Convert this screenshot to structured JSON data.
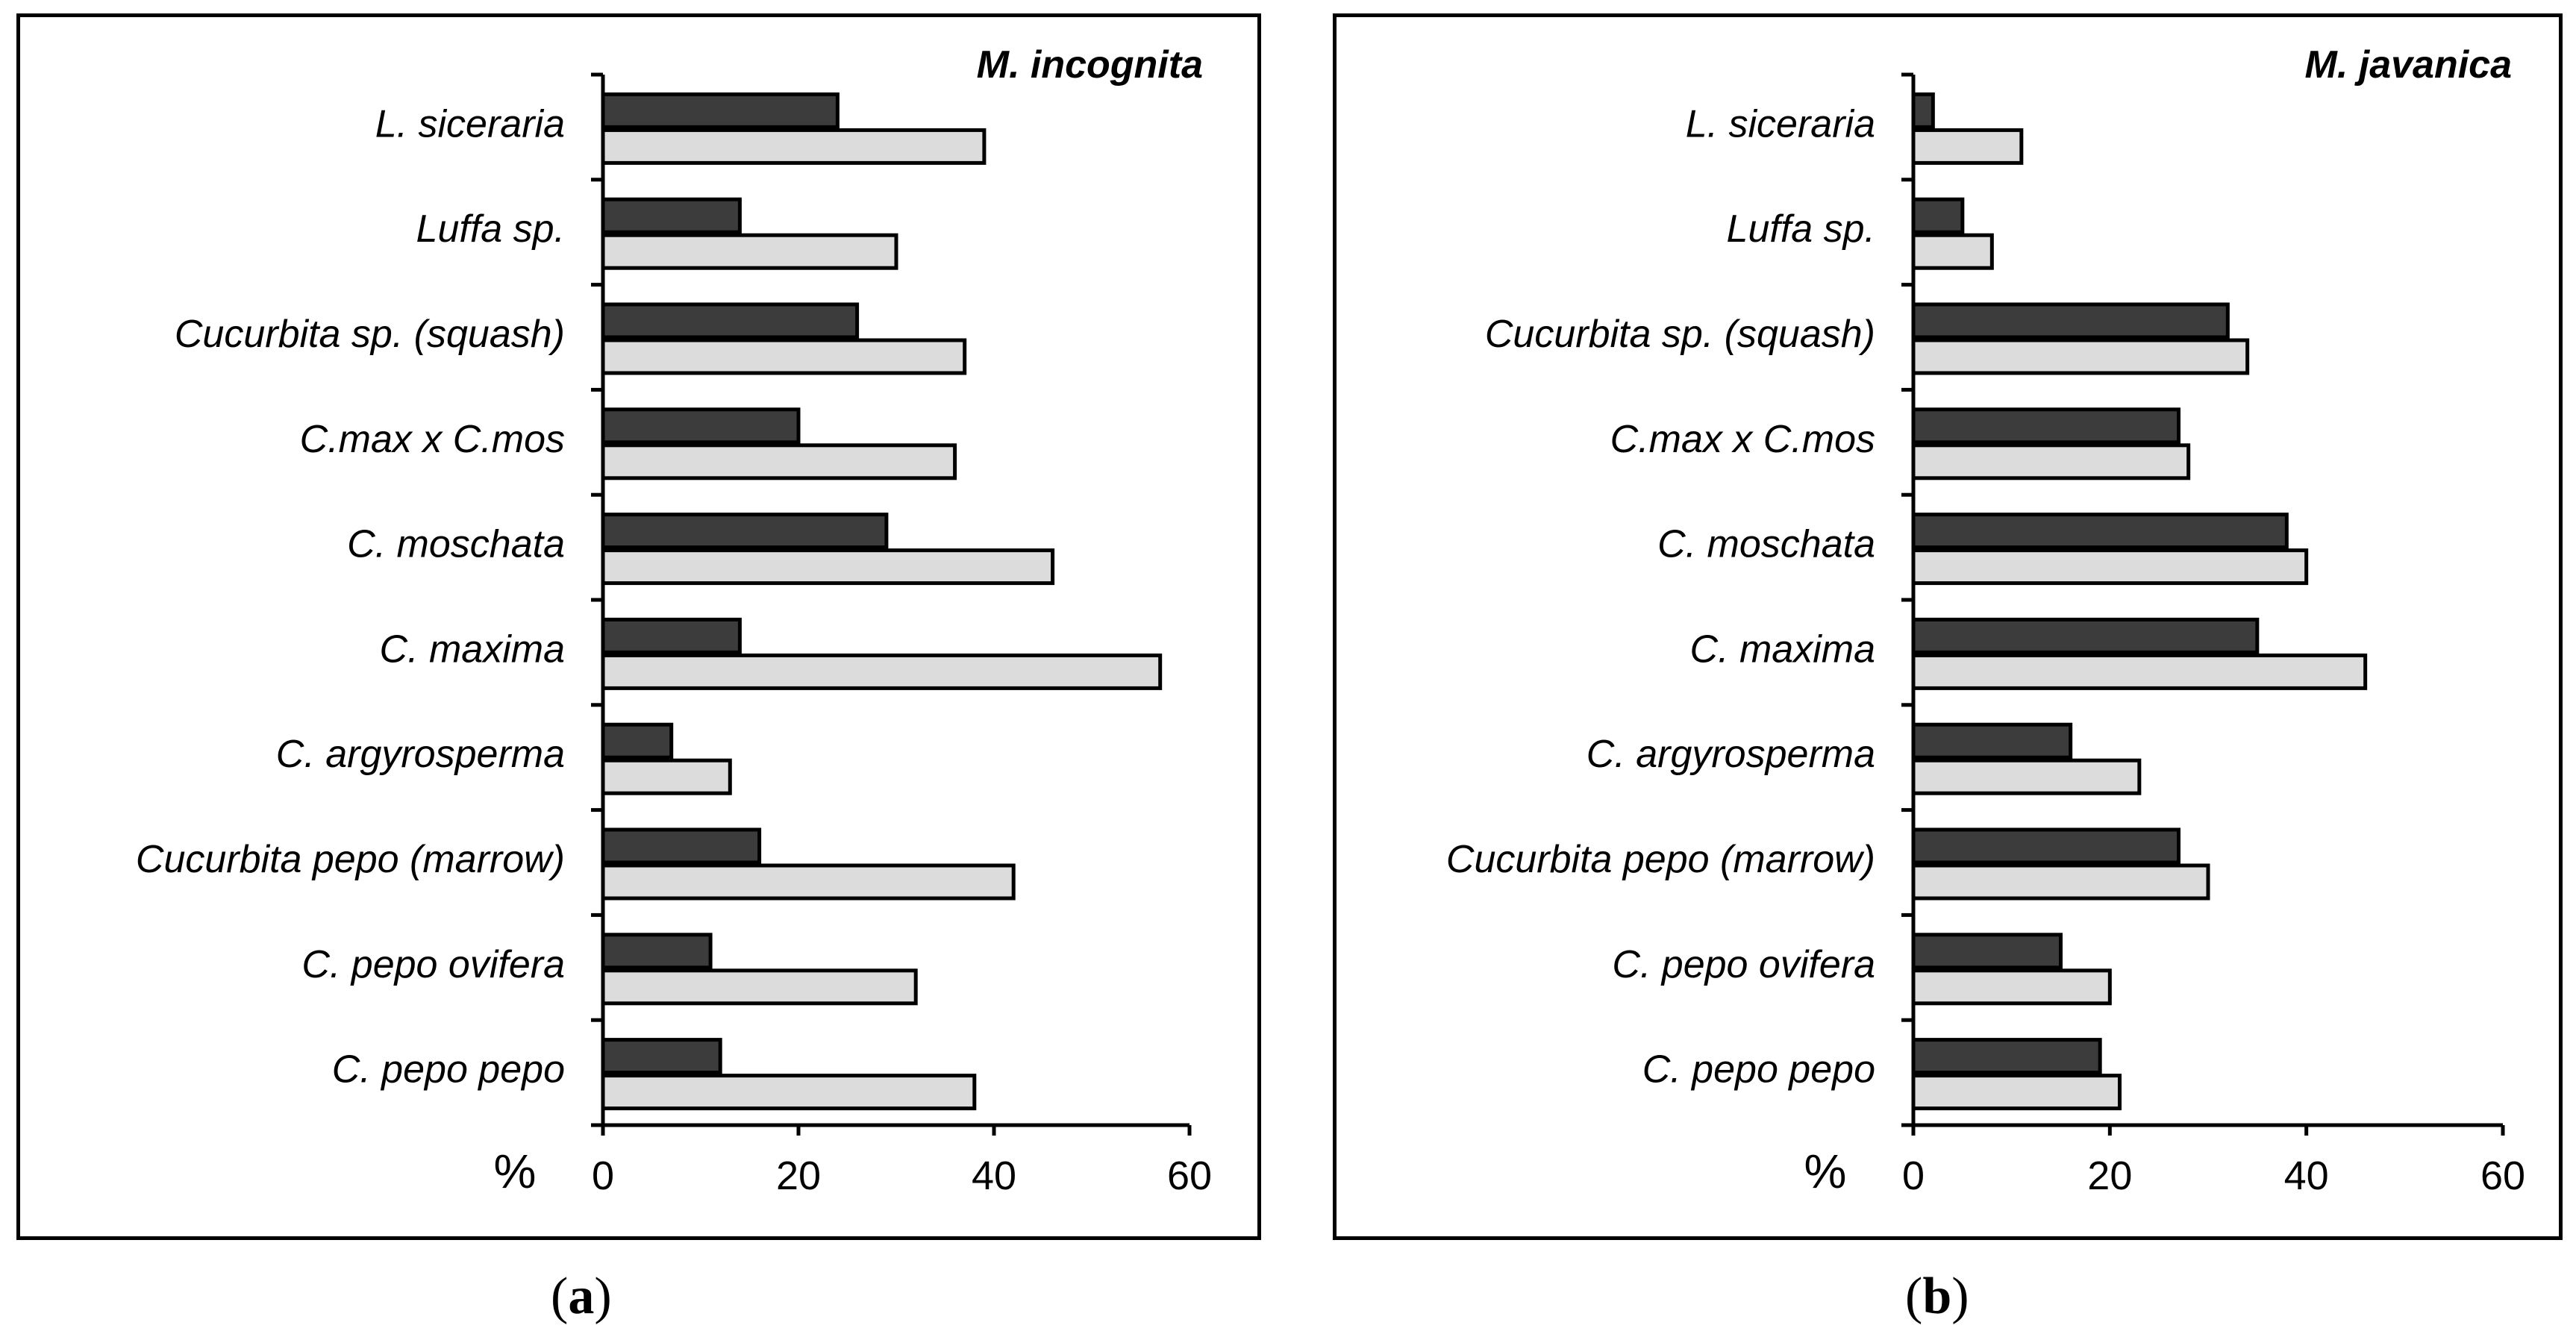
{
  "chart_data": [
    {
      "type": "bar",
      "orientation": "horizontal",
      "title": "M. incognita",
      "xlabel": "%",
      "ylabel": "",
      "xlim": [
        0,
        60
      ],
      "xticks": [
        0,
        20,
        40,
        60
      ],
      "categories": [
        "L. siceraria",
        "Luffa sp.",
        "Cucurbita sp. (squash)",
        "C.max x C.mos",
        "C. moschata",
        "C. maxima",
        "C. argyrosperma",
        "Cucurbita pepo (marrow)",
        "C. pepo ovifera",
        "C. pepo pepo"
      ],
      "series": [
        {
          "name": "dark",
          "color": "#3c3c3c",
          "values": [
            24,
            14,
            26,
            20,
            29,
            14,
            7,
            16,
            11,
            12
          ]
        },
        {
          "name": "light",
          "color": "#dcdcdc",
          "values": [
            39,
            30,
            37,
            36,
            46,
            57,
            13,
            42,
            32,
            38
          ]
        }
      ],
      "grid": false,
      "legend": "none",
      "caption_letter": "a"
    },
    {
      "type": "bar",
      "orientation": "horizontal",
      "title": "M. javanica",
      "xlabel": "%",
      "ylabel": "",
      "xlim": [
        0,
        60
      ],
      "xticks": [
        0,
        20,
        40,
        60
      ],
      "categories": [
        "L. siceraria",
        "Luffa sp.",
        "Cucurbita sp. (squash)",
        "C.max x C.mos",
        "C. moschata",
        "C. maxima",
        "C. argyrosperma",
        "Cucurbita pepo (marrow)",
        "C. pepo ovifera",
        "C. pepo pepo"
      ],
      "series": [
        {
          "name": "dark",
          "color": "#3c3c3c",
          "values": [
            2,
            5,
            32,
            27,
            38,
            35,
            16,
            27,
            15,
            19
          ]
        },
        {
          "name": "light",
          "color": "#dcdcdc",
          "values": [
            11,
            8,
            34,
            28,
            40,
            46,
            23,
            30,
            20,
            21
          ]
        }
      ],
      "grid": false,
      "legend": "none",
      "caption_letter": "b"
    }
  ]
}
